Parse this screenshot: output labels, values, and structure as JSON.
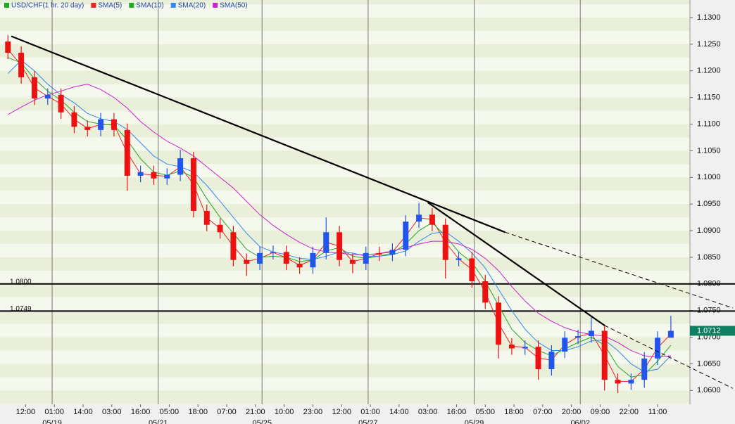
{
  "chart_data": {
    "type": "candlestick",
    "title": "USD/CHF(1 hr. 20 day)",
    "x": [
      2,
      8,
      14,
      20,
      26,
      32,
      38,
      44,
      50,
      56,
      62,
      68,
      74,
      80,
      86,
      92,
      98,
      104,
      110,
      116,
      122,
      128,
      134,
      140,
      146,
      152,
      158,
      164,
      170,
      176,
      182,
      188,
      194,
      200,
      206,
      212,
      218,
      224,
      230,
      236,
      242,
      248,
      254,
      260,
      266,
      272,
      278,
      284,
      290,
      296,
      302
    ],
    "open": [
      1.1255,
      1.1234,
      1.1188,
      1.1148,
      1.1155,
      1.1122,
      1.1095,
      1.1089,
      1.1109,
      1.1089,
      1.1003,
      1.101,
      1.0998,
      1.1005,
      1.1036,
      1.0937,
      1.0911,
      1.0897,
      1.0845,
      1.0838,
      1.0858,
      1.086,
      1.0838,
      1.0831,
      1.0858,
      1.0897,
      1.0845,
      1.0838,
      1.0858,
      1.0855,
      1.0864,
      1.0917,
      1.093,
      1.0911,
      1.0845,
      1.0848,
      1.0805,
      1.0765,
      1.0686,
      1.0679,
      1.0682,
      1.064,
      1.0673,
      1.0699,
      1.0702,
      1.0712,
      1.062,
      1.0613,
      1.062,
      1.066,
      1.0699
    ],
    "high": [
      1.1267,
      1.1246,
      1.12,
      1.1167,
      1.1167,
      1.1134,
      1.1107,
      1.1121,
      1.1121,
      1.1101,
      1.1022,
      1.1022,
      1.1017,
      1.1052,
      1.1048,
      1.0949,
      1.0923,
      1.0909,
      1.0857,
      1.087,
      1.0872,
      1.0872,
      1.085,
      1.087,
      1.0925,
      1.0909,
      1.0857,
      1.087,
      1.087,
      1.0876,
      1.0929,
      1.0952,
      1.0942,
      1.0923,
      1.086,
      1.086,
      1.0817,
      1.0777,
      1.0698,
      1.0694,
      1.0694,
      1.0685,
      1.0711,
      1.0714,
      1.074,
      1.0724,
      1.0632,
      1.0632,
      1.0672,
      1.0711,
      1.074
    ],
    "low": [
      1.1222,
      1.1176,
      1.1136,
      1.1136,
      1.111,
      1.1083,
      1.1077,
      1.1077,
      1.1077,
      1.0975,
      1.0991,
      1.0986,
      1.0986,
      1.0993,
      1.0925,
      1.0899,
      1.0885,
      1.0833,
      1.0815,
      1.0826,
      1.0846,
      1.0826,
      1.0819,
      1.0819,
      1.0846,
      1.0833,
      1.082,
      1.0826,
      1.0843,
      1.0843,
      1.0852,
      1.0905,
      1.0899,
      1.081,
      1.0833,
      1.0793,
      1.0753,
      1.066,
      1.0667,
      1.0667,
      1.062,
      1.0628,
      1.0661,
      1.0687,
      1.069,
      1.06,
      1.0595,
      1.0601,
      1.0605,
      1.0648,
      1.07
    ],
    "close": [
      1.1234,
      1.1188,
      1.1148,
      1.1155,
      1.1122,
      1.1095,
      1.1089,
      1.1109,
      1.1089,
      1.1003,
      1.101,
      1.0998,
      1.1005,
      1.1036,
      1.0937,
      1.0911,
      1.0897,
      1.0845,
      1.0838,
      1.0858,
      1.086,
      1.0838,
      1.0831,
      1.0858,
      1.0897,
      1.0845,
      1.0838,
      1.0858,
      1.0855,
      1.0864,
      1.0917,
      1.093,
      1.0911,
      1.0845,
      1.0848,
      1.0805,
      1.0765,
      1.0686,
      1.0679,
      1.0682,
      1.064,
      1.0673,
      1.0699,
      1.0702,
      1.0712,
      1.062,
      1.0613,
      1.062,
      1.066,
      1.0699,
      1.0712
    ],
    "up_color": "#2255ee",
    "down_color": "#ee1111",
    "title_color": "#22aa22",
    "series": [
      {
        "name": "SMA(5)",
        "color": "#ee2222",
        "values": [
          1.124,
          1.1211,
          1.1168,
          1.1152,
          1.1138,
          1.1109,
          1.1092,
          1.1099,
          1.1099,
          1.1046,
          1.1007,
          1.1004,
          1.1002,
          1.102,
          1.0987,
          1.0924,
          1.0904,
          1.0871,
          1.0842,
          1.0848,
          1.0859,
          1.0849,
          1.0835,
          1.0845,
          1.0878,
          1.0871,
          1.0842,
          1.0848,
          1.0857,
          1.086,
          1.089,
          1.0924,
          1.0921,
          1.0878,
          1.0847,
          1.0827,
          1.0785,
          1.0726,
          1.0683,
          1.0681,
          1.0661,
          1.0657,
          1.0686,
          1.0701,
          1.0707,
          1.0666,
          1.0617,
          1.0617,
          1.064,
          1.068,
          1.0706
        ]
      },
      {
        "name": "SMA(10)",
        "color": "#22aa22",
        "values": [
          1.1225,
          1.1215,
          1.1185,
          1.1162,
          1.1145,
          1.1122,
          1.1105,
          1.11,
          1.1098,
          1.107,
          1.1035,
          1.101,
          1.1004,
          1.1012,
          1.1,
          1.096,
          1.0925,
          1.0895,
          1.0865,
          1.085,
          1.0852,
          1.085,
          1.0842,
          1.0845,
          1.0862,
          1.0868,
          1.0852,
          1.0848,
          1.0852,
          1.0858,
          1.0875,
          1.09,
          1.0915,
          1.089,
          1.086,
          1.084,
          1.0805,
          1.076,
          1.0715,
          1.069,
          1.0675,
          1.0665,
          1.0678,
          1.069,
          1.07,
          1.0685,
          1.0645,
          1.0625,
          1.063,
          1.0655,
          1.0685
        ]
      },
      {
        "name": "SMA(20)",
        "color": "#3388ee",
        "values": [
          1.1195,
          1.122,
          1.12,
          1.1175,
          1.1155,
          1.114,
          1.112,
          1.111,
          1.1105,
          1.109,
          1.1065,
          1.104,
          1.1025,
          1.102,
          1.101,
          1.0985,
          1.0955,
          1.0925,
          1.0895,
          1.087,
          1.086,
          1.0855,
          1.0848,
          1.0846,
          1.0852,
          1.086,
          1.0858,
          1.0852,
          1.0852,
          1.0855,
          1.0862,
          1.088,
          1.0895,
          1.0898,
          1.088,
          1.0858,
          1.083,
          1.079,
          1.075,
          1.0715,
          1.069,
          1.0675,
          1.0675,
          1.0682,
          1.0693,
          1.0695,
          1.0675,
          1.065,
          1.0635,
          1.064,
          1.0665
        ]
      },
      {
        "name": "SMA(50)",
        "color": "#cc22cc",
        "values": [
          1.1118,
          1.1132,
          1.1145,
          1.1155,
          1.1162,
          1.117,
          1.1175,
          1.1165,
          1.115,
          1.113,
          1.1105,
          1.1085,
          1.1068,
          1.1055,
          1.104,
          1.102,
          1.1,
          1.098,
          1.0955,
          1.093,
          1.091,
          1.0893,
          1.0878,
          1.0866,
          1.086,
          1.0858,
          1.0855,
          1.0855,
          1.0857,
          1.0862,
          1.0868,
          1.0875,
          1.088,
          1.088,
          1.0875,
          1.0865,
          1.0848,
          1.0825,
          1.0795,
          1.0768,
          1.0745,
          1.073,
          1.0718,
          1.071,
          1.0705,
          1.0702,
          1.069,
          1.0675,
          1.0665,
          1.0663,
          1.0665
        ]
      }
    ],
    "xlim": [
      0,
      310
    ],
    "ylim": [
      1.0574,
      1.1333
    ],
    "yticks": [
      {
        "value": 1.06,
        "label": "1.0600"
      },
      {
        "value": 1.065,
        "label": "1.0650"
      },
      {
        "value": 1.07,
        "label": "1.0700"
      },
      {
        "value": 1.075,
        "label": "1.0750"
      },
      {
        "value": 1.08,
        "label": "1.0800"
      },
      {
        "value": 1.085,
        "label": "1.0850"
      },
      {
        "value": 1.09,
        "label": "1.0900"
      },
      {
        "value": 1.095,
        "label": "1.0950"
      },
      {
        "value": 1.1,
        "label": "1.1000"
      },
      {
        "value": 1.105,
        "label": "1.1050"
      },
      {
        "value": 1.11,
        "label": "1.1100"
      },
      {
        "value": 1.115,
        "label": "1.1150"
      },
      {
        "value": 1.12,
        "label": "1.1200"
      },
      {
        "value": 1.125,
        "label": "1.1250"
      },
      {
        "value": 1.13,
        "label": "1.1300"
      }
    ],
    "xticks": [
      {
        "value": 10,
        "label": "12:00"
      },
      {
        "value": 23,
        "label": "01:00"
      },
      {
        "value": 36,
        "label": "14:00"
      },
      {
        "value": 49,
        "label": "03:00"
      },
      {
        "value": 62,
        "label": "16:00"
      },
      {
        "value": 75,
        "label": "05:00"
      },
      {
        "value": 88,
        "label": "18:00"
      },
      {
        "value": 101,
        "label": "07:00"
      },
      {
        "value": 114,
        "label": "21:00"
      },
      {
        "value": 127,
        "label": "10:00"
      },
      {
        "value": 140,
        "label": "23:00"
      },
      {
        "value": 153,
        "label": "12:00"
      },
      {
        "value": 166,
        "label": "01:00"
      },
      {
        "value": 179,
        "label": "14:00"
      },
      {
        "value": 192,
        "label": "03:00"
      },
      {
        "value": 205,
        "label": "16:00"
      },
      {
        "value": 218,
        "label": "05:00"
      },
      {
        "value": 231,
        "label": "18:00"
      },
      {
        "value": 244,
        "label": "07:00"
      },
      {
        "value": 257,
        "label": "20:00"
      },
      {
        "value": 270,
        "label": "09:00"
      },
      {
        "value": 283,
        "label": "22:00"
      },
      {
        "value": 296,
        "label": "11:00"
      }
    ],
    "date_markers": [
      {
        "value": 22,
        "label": "05/19"
      },
      {
        "value": 70,
        "label": "05/21"
      },
      {
        "value": 117,
        "label": "05/25"
      },
      {
        "value": 165,
        "label": "05/27"
      },
      {
        "value": 213,
        "label": "05/29"
      },
      {
        "value": 261,
        "label": "06/02"
      }
    ],
    "levels": [
      {
        "value": 1.08,
        "label": "1.0800"
      },
      1.0749
    ],
    "trend_lines": [
      {
        "solid": [
          [
            3.5,
            1.1265
          ],
          [
            227,
            1.0897
          ]
        ],
        "dashed": [
          [
            227,
            1.0897
          ],
          [
            330,
            1.0755
          ]
        ]
      },
      {
        "solid": [
          [
            192,
            1.0953
          ],
          [
            272,
            1.0722
          ]
        ],
        "dashed": [
          [
            272,
            1.0722
          ],
          [
            330,
            1.0604
          ]
        ]
      }
    ],
    "last_price": 1.0712,
    "last_price_color": "#0e7f60"
  }
}
